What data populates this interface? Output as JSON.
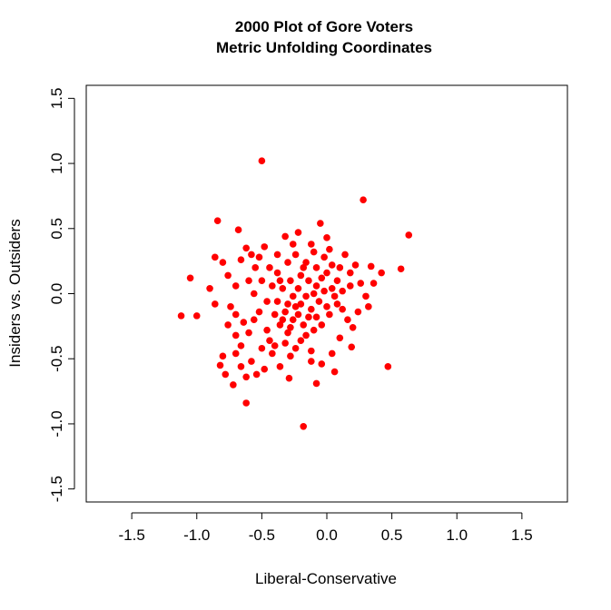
{
  "chart_data": {
    "type": "scatter",
    "title": "2000 Plot of Gore Voters",
    "subtitle": "Metric Unfolding Coordinates",
    "xlabel": "Liberal-Conservative",
    "ylabel": "Insiders vs. Outsiders",
    "xlim": [
      -1.85,
      1.85
    ],
    "ylim": [
      -1.6,
      1.6
    ],
    "x_ticks": [
      -1.5,
      -1.0,
      -0.5,
      0.0,
      0.5,
      1.0,
      1.5
    ],
    "x_tick_labels": [
      "-1.5",
      "-1.0",
      "-0.5",
      "0.0",
      "0.5",
      "1.0",
      "1.5"
    ],
    "y_ticks": [
      -1.5,
      -1.0,
      -0.5,
      0.0,
      0.5,
      1.0,
      1.5
    ],
    "y_tick_labels": [
      "-1.5",
      "-1.0",
      "-0.5",
      "0.0",
      "0.5",
      "1.0",
      "1.5"
    ],
    "grid": false,
    "marker_color": "#ff0000",
    "series": [
      {
        "points": [
          [
            -0.5,
            1.02
          ],
          [
            0.28,
            0.72
          ],
          [
            0.63,
            0.45
          ],
          [
            -0.84,
            0.56
          ],
          [
            -0.68,
            0.49
          ],
          [
            -0.05,
            0.54
          ],
          [
            0.0,
            0.43
          ],
          [
            -0.22,
            0.47
          ],
          [
            0.34,
            0.21
          ],
          [
            0.42,
            0.16
          ],
          [
            0.57,
            0.19
          ],
          [
            -1.05,
            0.12
          ],
          [
            -1.12,
            -0.17
          ],
          [
            -1.0,
            -0.17
          ],
          [
            0.47,
            -0.56
          ],
          [
            -0.08,
            -0.69
          ],
          [
            -0.62,
            -0.84
          ],
          [
            -0.18,
            -1.02
          ],
          [
            -0.29,
            -0.65
          ],
          [
            0.19,
            -0.41
          ],
          [
            -0.9,
            0.04
          ],
          [
            -0.8,
            0.24
          ],
          [
            -0.86,
            -0.08
          ],
          [
            -0.82,
            -0.55
          ],
          [
            -0.78,
            -0.62
          ],
          [
            -0.72,
            -0.7
          ],
          [
            -0.66,
            -0.56
          ],
          [
            -0.58,
            -0.52
          ],
          [
            -0.5,
            -0.42
          ],
          [
            -0.44,
            -0.36
          ],
          [
            -0.7,
            -0.32
          ],
          [
            -0.64,
            -0.22
          ],
          [
            -0.74,
            -0.1
          ],
          [
            -0.6,
            0.1
          ],
          [
            -0.55,
            0.2
          ],
          [
            -0.62,
            0.35
          ],
          [
            -0.48,
            0.36
          ],
          [
            -0.38,
            0.3
          ],
          [
            -0.32,
            0.44
          ],
          [
            -0.1,
            0.32
          ],
          [
            0.14,
            0.3
          ],
          [
            0.22,
            0.22
          ],
          [
            0.18,
            0.06
          ],
          [
            0.26,
            0.08
          ],
          [
            0.3,
            -0.02
          ],
          [
            0.24,
            -0.14
          ],
          [
            0.2,
            -0.26
          ],
          [
            0.1,
            -0.34
          ],
          [
            0.04,
            -0.46
          ],
          [
            -0.04,
            -0.54
          ],
          [
            -0.12,
            -0.44
          ],
          [
            -0.2,
            -0.36
          ],
          [
            -0.28,
            -0.48
          ],
          [
            -0.36,
            -0.56
          ],
          [
            -0.42,
            -0.46
          ],
          [
            -0.46,
            -0.28
          ],
          [
            -0.52,
            -0.14
          ],
          [
            -0.56,
            0.0
          ],
          [
            -0.5,
            0.1
          ],
          [
            -0.44,
            0.2
          ],
          [
            -0.38,
            0.16
          ],
          [
            -0.3,
            0.24
          ],
          [
            -0.24,
            0.3
          ],
          [
            -0.16,
            0.24
          ],
          [
            -0.08,
            0.2
          ],
          [
            0.0,
            0.16
          ],
          [
            0.08,
            0.1
          ],
          [
            0.12,
            0.02
          ],
          [
            0.08,
            -0.08
          ],
          [
            0.02,
            -0.16
          ],
          [
            -0.04,
            -0.24
          ],
          [
            -0.1,
            -0.28
          ],
          [
            -0.18,
            -0.24
          ],
          [
            -0.26,
            -0.2
          ],
          [
            -0.32,
            -0.14
          ],
          [
            -0.38,
            -0.06
          ],
          [
            -0.34,
            0.04
          ],
          [
            -0.28,
            0.1
          ],
          [
            -0.2,
            0.14
          ],
          [
            -0.14,
            0.1
          ],
          [
            -0.08,
            0.06
          ],
          [
            -0.02,
            0.02
          ],
          [
            -0.06,
            -0.06
          ],
          [
            -0.12,
            -0.12
          ],
          [
            -0.2,
            -0.08
          ],
          [
            -0.26,
            -0.02
          ],
          [
            -0.22,
            0.04
          ],
          [
            -0.16,
            -0.02
          ],
          [
            -0.1,
            0.0
          ],
          [
            -0.24,
            -0.1
          ],
          [
            -0.3,
            -0.3
          ],
          [
            -0.36,
            -0.24
          ],
          [
            -0.4,
            -0.16
          ],
          [
            -0.46,
            -0.06
          ],
          [
            -0.42,
            0.06
          ],
          [
            -0.36,
            0.1
          ],
          [
            -0.18,
            0.2
          ],
          [
            -0.04,
            0.12
          ],
          [
            0.04,
            0.04
          ],
          [
            0.06,
            -0.02
          ],
          [
            -0.14,
            -0.18
          ],
          [
            -0.22,
            -0.16
          ],
          [
            -0.3,
            -0.08
          ],
          [
            -0.34,
            -0.2
          ],
          [
            -0.28,
            -0.26
          ],
          [
            -0.16,
            -0.32
          ],
          [
            -0.08,
            -0.18
          ],
          [
            0.0,
            -0.1
          ],
          [
            0.04,
            0.22
          ],
          [
            -0.02,
            0.28
          ],
          [
            -0.66,
            -0.4
          ],
          [
            -0.6,
            -0.3
          ],
          [
            -0.56,
            -0.2
          ],
          [
            -0.7,
            -0.16
          ],
          [
            -0.76,
            -0.24
          ],
          [
            -0.8,
            -0.48
          ],
          [
            -0.7,
            -0.46
          ],
          [
            -0.62,
            -0.64
          ],
          [
            -0.54,
            -0.62
          ],
          [
            -0.48,
            -0.58
          ],
          [
            -0.86,
            0.28
          ],
          [
            -0.76,
            0.14
          ],
          [
            -0.7,
            0.06
          ],
          [
            -0.66,
            0.26
          ],
          [
            -0.58,
            0.3
          ],
          [
            -0.52,
            0.28
          ],
          [
            0.36,
            0.08
          ],
          [
            0.32,
            -0.1
          ],
          [
            0.16,
            -0.2
          ],
          [
            0.12,
            -0.12
          ],
          [
            0.18,
            0.16
          ],
          [
            0.1,
            0.2
          ],
          [
            0.02,
            0.34
          ],
          [
            -0.12,
            0.38
          ],
          [
            -0.26,
            0.38
          ],
          [
            -0.4,
            -0.4
          ],
          [
            -0.32,
            -0.38
          ],
          [
            -0.24,
            -0.42
          ],
          [
            -0.12,
            -0.52
          ],
          [
            0.06,
            -0.6
          ]
        ]
      }
    ]
  }
}
